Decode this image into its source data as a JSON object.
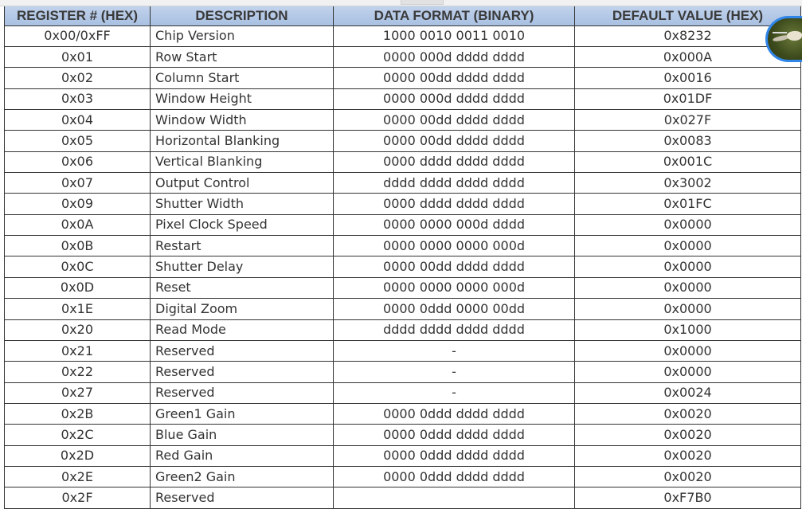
{
  "table": {
    "headers": [
      "REGISTER # (HEX)",
      "DESCRIPTION",
      "DATA FORMAT (BINARY)",
      "DEFAULT VALUE (HEX)"
    ],
    "rows": [
      [
        "0x00/0xFF",
        "Chip Version",
        "1000 0010 0011 0010",
        "0x8232"
      ],
      [
        "0x01",
        "Row Start",
        "0000 000d dddd dddd",
        "0x000A"
      ],
      [
        "0x02",
        "Column Start",
        "0000 00dd dddd dddd",
        "0x0016"
      ],
      [
        "0x03",
        "Window Height",
        "0000 000d dddd dddd",
        "0x01DF"
      ],
      [
        "0x04",
        "Window Width",
        "0000 00dd dddd dddd",
        "0x027F"
      ],
      [
        "0x05",
        "Horizontal Blanking",
        "0000 00dd dddd dddd",
        "0x0083"
      ],
      [
        "0x06",
        "Vertical Blanking",
        "0000 dddd dddd dddd",
        "0x001C"
      ],
      [
        "0x07",
        "Output Control",
        "dddd dddd dddd dddd",
        "0x3002"
      ],
      [
        "0x09",
        "Shutter Width",
        "0000 dddd dddd dddd",
        "0x01FC"
      ],
      [
        "0x0A",
        "Pixel Clock Speed",
        "0000 0000 000d dddd",
        "0x0000"
      ],
      [
        "0x0B",
        "Restart",
        "0000 0000 0000 000d",
        "0x0000"
      ],
      [
        "0x0C",
        "Shutter Delay",
        "0000 00dd dddd dddd",
        "0x0000"
      ],
      [
        "0x0D",
        "Reset",
        "0000 0000 0000 000d",
        "0x0000"
      ],
      [
        "0x1E",
        "Digital Zoom",
        "0000 0ddd 0000 00dd",
        "0x0000"
      ],
      [
        "0x20",
        "Read Mode",
        "dddd dddd dddd dddd",
        "0x1000"
      ],
      [
        "0x21",
        "Reserved",
        "-",
        "0x0000"
      ],
      [
        "0x22",
        "Reserved",
        "-",
        "0x0000"
      ],
      [
        "0x27",
        "Reserved",
        "-",
        "0x0024"
      ],
      [
        "0x2B",
        "Green1 Gain",
        "0000 0ddd dddd dddd",
        "0x0020"
      ],
      [
        "0x2C",
        "Blue Gain",
        "0000 0ddd dddd dddd",
        "0x0020"
      ],
      [
        "0x2D",
        "Red Gain",
        "0000 0ddd dddd dddd",
        "0x0020"
      ],
      [
        "0x2E",
        "Green2 Gain",
        "0000 0ddd dddd dddd",
        "0x0020"
      ],
      [
        "0x2F",
        "Reserved",
        "",
        "0xF7B0"
      ]
    ]
  },
  "avatar": {
    "icon": "hummingbird-avatar",
    "ring_color": "#2f86e8"
  }
}
